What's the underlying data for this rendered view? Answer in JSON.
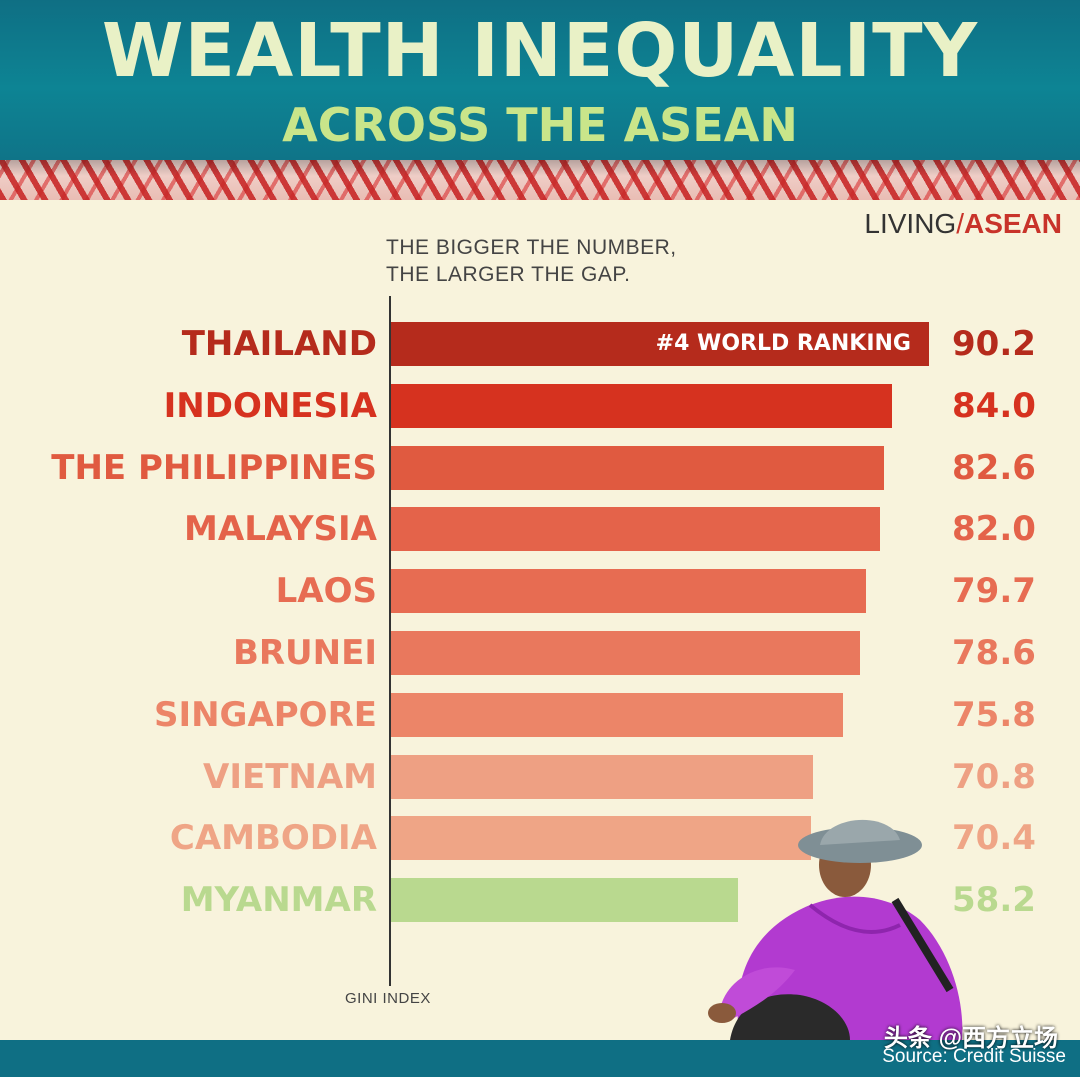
{
  "header": {
    "title": "WEALTH INEQUALITY",
    "subtitle": "ACROSS THE ASEAN"
  },
  "logo": {
    "part1": "LIVING",
    "part2": "ASEAN"
  },
  "note": {
    "line1": "THE BIGGER THE NUMBER,",
    "line2": "THE LARGER THE GAP."
  },
  "footer": {
    "source": "Source: Credit Suisse",
    "watermark": "头条 @西方立场"
  },
  "colors": {
    "header_bg": "#0f6f84",
    "background": "#f8f3dc",
    "thailand": "#b52b1c",
    "indonesia": "#d6321f",
    "philippines": "#e05a40",
    "malaysia": "#e4634a",
    "laos": "#e76c52",
    "brunei": "#e9785d",
    "singapore": "#ec8568",
    "vietnam": "#eea083",
    "cambodia": "#efa586",
    "myanmar": "#b9d98f"
  },
  "chart_data": {
    "type": "bar",
    "orientation": "horizontal",
    "categories": [
      "THAILAND",
      "INDONESIA",
      "THE PHILIPPINES",
      "MALAYSIA",
      "LAOS",
      "BRUNEI",
      "SINGAPORE",
      "VIETNAM",
      "CAMBODIA",
      "MYANMAR"
    ],
    "values": [
      90.2,
      84.0,
      82.6,
      82.0,
      79.7,
      78.6,
      75.8,
      70.8,
      70.4,
      58.2
    ],
    "value_labels": [
      "90.2",
      "84.0",
      "82.6",
      "82.0",
      "79.7",
      "78.6",
      "75.8",
      "70.8",
      "70.4",
      "58.2"
    ],
    "bar_colors": [
      "#b52b1c",
      "#d6321f",
      "#e05a40",
      "#e4634a",
      "#e76c52",
      "#e9785d",
      "#ec8568",
      "#eea083",
      "#efa586",
      "#b9d98f"
    ],
    "annotation": {
      "category": "THAILAND",
      "text": "#4 WORLD RANKING"
    },
    "title": "WEALTH INEQUALITY",
    "subtitle": "ACROSS THE ASEAN",
    "xlabel": "GINI INDEX",
    "ylabel": "",
    "xlim": [
      0,
      100
    ],
    "grid": false,
    "legend": "none"
  }
}
